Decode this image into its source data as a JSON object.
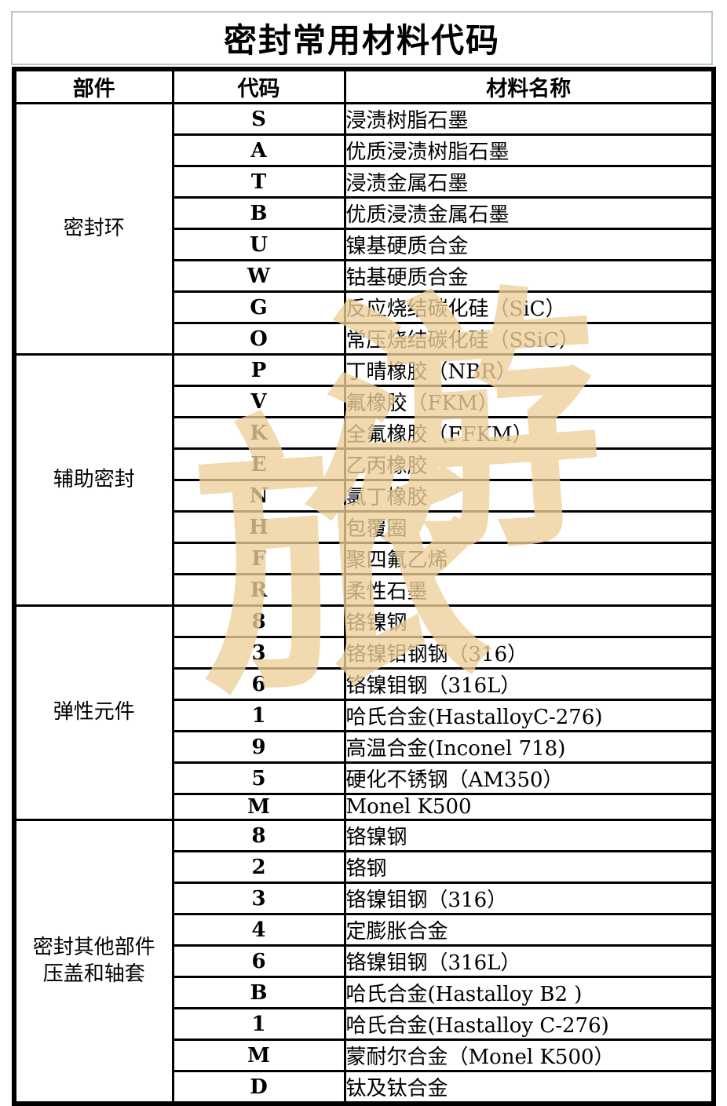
{
  "title": "密封常用材料代码",
  "header": {
    "columns": [
      "部件",
      "代码",
      "材料名称"
    ]
  },
  "groups": [
    {
      "component_lines": [
        "密封环"
      ],
      "rows": [
        {
          "code": "S",
          "material": "浸渍树脂石墨"
        },
        {
          "code": "A",
          "material": "优质浸渍树脂石墨"
        },
        {
          "code": "T",
          "material": "浸渍金属石墨"
        },
        {
          "code": "B",
          "material": "优质浸渍金属石墨"
        },
        {
          "code": "U",
          "material": "镍基硬质合金"
        },
        {
          "code": "W",
          "material": "钴基硬质合金"
        },
        {
          "code": "G",
          "material": "反应烧结碳化硅（SiC）"
        },
        {
          "code": "O",
          "material": "常压烧结碳化硅（SSiC）"
        }
      ]
    },
    {
      "component_lines": [
        "辅助密封"
      ],
      "rows": [
        {
          "code": "P",
          "material": "丁晴橡胶（NBR）"
        },
        {
          "code": "V",
          "material": "氟橡胶（FKM）"
        },
        {
          "code": "K",
          "material": "全氟橡胶（FFKM）"
        },
        {
          "code": "E",
          "material": "乙丙橡胶"
        },
        {
          "code": "N",
          "material": "氯丁橡胶"
        },
        {
          "code": "H",
          "material": "包覆圈"
        },
        {
          "code": "F",
          "material": "聚四氟乙烯"
        },
        {
          "code": "R",
          "material": "柔性石墨"
        }
      ]
    },
    {
      "component_lines": [
        "弹性元件"
      ],
      "rows": [
        {
          "code": "8",
          "material": "铬镍钢"
        },
        {
          "code": "3",
          "material": "铬镍钼钢钢（316）"
        },
        {
          "code": "6",
          "material": "铬镍钼钢（316L）"
        },
        {
          "code": "1",
          "material": "哈氏合金(HastalloyC-276)"
        },
        {
          "code": "9",
          "material": "高温合金(Inconel 718)"
        },
        {
          "code": "5",
          "material": "硬化不锈钢（AM350）"
        },
        {
          "code": "M",
          "material": "Monel K500"
        }
      ]
    },
    {
      "component_lines": [
        "密封其他部件",
        "压盖和轴套"
      ],
      "rows": [
        {
          "code": "8",
          "material": "铬镍钢"
        },
        {
          "code": "2",
          "material": "铬钢"
        },
        {
          "code": "3",
          "material": "铬镍钼钢（316）"
        },
        {
          "code": "4",
          "material": "定膨胀合金"
        },
        {
          "code": "6",
          "material": "铬镍钼钢（316L）"
        },
        {
          "code": "B",
          "material": "哈氏合金(Hastalloy B2 )"
        },
        {
          "code": "1",
          "material": "哈氏合金(Hastalloy C-276)"
        },
        {
          "code": "M",
          "material": "蒙耐尔合金（Monel K500）"
        },
        {
          "code": "D",
          "material": "钛及钛合金"
        }
      ]
    }
  ],
  "watermark": {
    "characters": [
      "旅",
      "游"
    ],
    "color": "#efd09b"
  },
  "colors": {
    "background": "#ffffff",
    "text": "#000000",
    "title_border": "#b7cabf",
    "table_border": "#000000"
  }
}
